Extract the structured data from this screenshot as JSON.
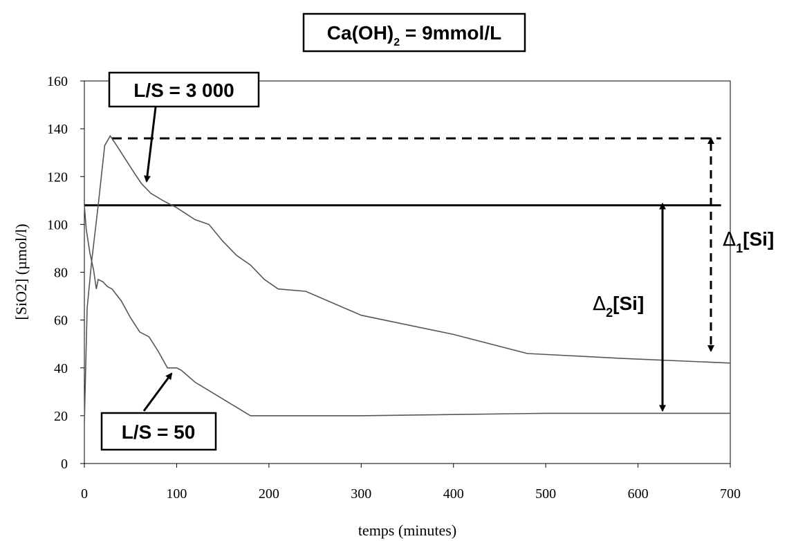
{
  "header": {
    "formula_prefix": "Ca(OH)",
    "formula_subscript": "2",
    "formula_suffix": " = 9mmol/L"
  },
  "chart_data": {
    "type": "line",
    "xlabel": "temps (minutes)",
    "ylabel": "[SiO2] (µmol/l)",
    "xlim": [
      0,
      700
    ],
    "ylim": [
      0,
      160
    ],
    "x_ticks": [
      0,
      100,
      200,
      300,
      400,
      500,
      600,
      700
    ],
    "y_ticks": [
      0,
      20,
      40,
      60,
      80,
      100,
      120,
      140,
      160
    ],
    "grid": false,
    "series": [
      {
        "name": "L/S = 3 000",
        "points": [
          [
            0,
            17
          ],
          [
            3,
            65
          ],
          [
            8,
            85
          ],
          [
            15,
            108
          ],
          [
            22,
            133
          ],
          [
            28,
            137
          ],
          [
            35,
            133
          ],
          [
            45,
            127
          ],
          [
            55,
            121
          ],
          [
            62,
            117
          ],
          [
            72,
            113
          ],
          [
            85,
            110
          ],
          [
            100,
            107
          ],
          [
            120,
            102
          ],
          [
            135,
            100
          ],
          [
            150,
            93
          ],
          [
            165,
            87
          ],
          [
            180,
            83
          ],
          [
            195,
            77
          ],
          [
            210,
            73
          ],
          [
            240,
            72
          ],
          [
            300,
            62
          ],
          [
            400,
            54
          ],
          [
            480,
            46
          ],
          [
            580,
            44
          ],
          [
            700,
            42
          ]
        ]
      },
      {
        "name": "L/S = 50",
        "points": [
          [
            0,
            108
          ],
          [
            2,
            98
          ],
          [
            6,
            88
          ],
          [
            10,
            81
          ],
          [
            13,
            73
          ],
          [
            15,
            77
          ],
          [
            20,
            76
          ],
          [
            25,
            74
          ],
          [
            30,
            73
          ],
          [
            40,
            68
          ],
          [
            50,
            61
          ],
          [
            60,
            55
          ],
          [
            70,
            53
          ],
          [
            80,
            47
          ],
          [
            90,
            40
          ],
          [
            100,
            40
          ],
          [
            105,
            39
          ],
          [
            120,
            34
          ],
          [
            150,
            27
          ],
          [
            180,
            20
          ],
          [
            300,
            20
          ],
          [
            500,
            21
          ],
          [
            700,
            21
          ]
        ]
      }
    ],
    "reference_lines": [
      {
        "style": "solid",
        "y": 108,
        "x_range": [
          0,
          690
        ]
      },
      {
        "style": "dashed",
        "y": 136,
        "x_range": [
          30,
          690
        ]
      }
    ],
    "annotations": {
      "label_ls3000": "L/S = 3 000",
      "label_ls50": "L/S = 50",
      "delta1_symbol": "Δ",
      "delta1_subscript": "1",
      "delta1_rest": "[Si]",
      "delta2_symbol": "Δ",
      "delta2_subscript": "2",
      "delta2_rest": "[Si]"
    }
  }
}
